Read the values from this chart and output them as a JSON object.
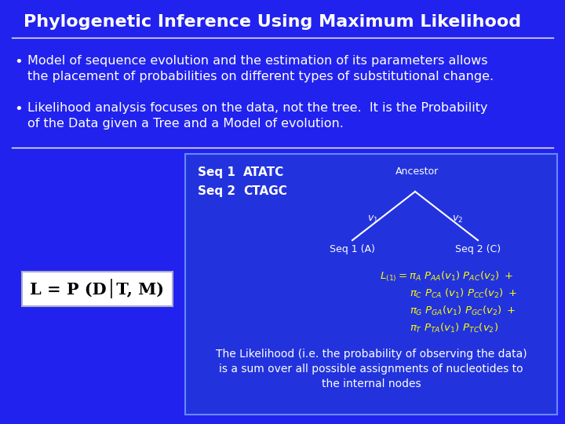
{
  "bg_color": "#2222ee",
  "box_bg": "#2233dd",
  "box_border": "#6688ff",
  "title": "Phylogenetic Inference Using Maximum Likelihood",
  "bullet1_line1": "Model of sequence evolution and the estimation of its parameters allows",
  "bullet1_line2": "the placement of probabilities on different types of substitutional change.",
  "bullet2_line1": "Likelihood analysis focuses on the data, not the tree.  It is the Probability",
  "bullet2_line2": "of the Data given a Tree and a Model of evolution.",
  "seq1_label": "Seq 1",
  "seq1_seq": "ATATC",
  "seq2_label": "Seq 2",
  "seq2_seq": "CTAGC",
  "ancestor_label": "Ancestor",
  "seq1_node": "Seq 1 (A)",
  "seq2_node": "Seq 2 (C)",
  "bottom_text1": "The Likelihood (i.e. the probability of observing the data)",
  "bottom_text2": "is a sum over all possible assignments of nucleotides to",
  "bottom_text3": "the internal nodes",
  "lhs_box_text": "L = P (D│T, M)",
  "white": "#ffffff",
  "yellow": "#ffff00",
  "black": "#000000"
}
